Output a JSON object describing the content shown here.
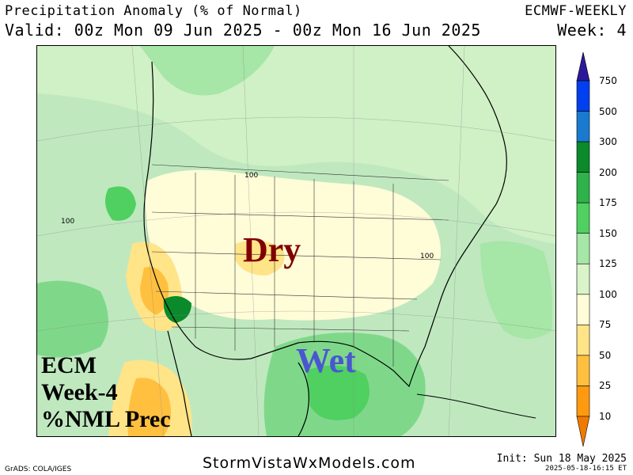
{
  "header": {
    "title": "Precipitation Anomaly (% of Normal)",
    "valid": "Valid: 00z Mon 09 Jun 2025 - 00z Mon 16 Jun 2025",
    "model": "ECMWF-WEEKLY",
    "week": "Week: 4"
  },
  "map": {
    "labels": {
      "dry": "Dry",
      "wet": "Wet",
      "box_lines": [
        "ECM",
        "Week-4",
        "%NML Prec"
      ]
    },
    "contour_labels": [
      "100",
      "100",
      "100"
    ],
    "colors": {
      "dry_text": "#800000",
      "wet_text": "#4a56d0"
    }
  },
  "colorbar": {
    "levels": [
      "750",
      "500",
      "300",
      "200",
      "175",
      "150",
      "125",
      "100",
      "75",
      "50",
      "25",
      "10"
    ],
    "colors": [
      "#2a1a9a",
      "#0040f0",
      "#1a7ad0",
      "#0a8a2a",
      "#2eb24a",
      "#4fd060",
      "#a6e6a6",
      "#d8f4c8",
      "#fffcd8",
      "#ffe488",
      "#ffc040",
      "#ff9a10",
      "#f07a00"
    ]
  },
  "footer": {
    "website": "StormVistaWxModels.com",
    "credit": "GrADS: COLA/IGES",
    "init": "Init: Sun 18 May 2025",
    "stamp": "2025-05-18-16:15 ET"
  }
}
